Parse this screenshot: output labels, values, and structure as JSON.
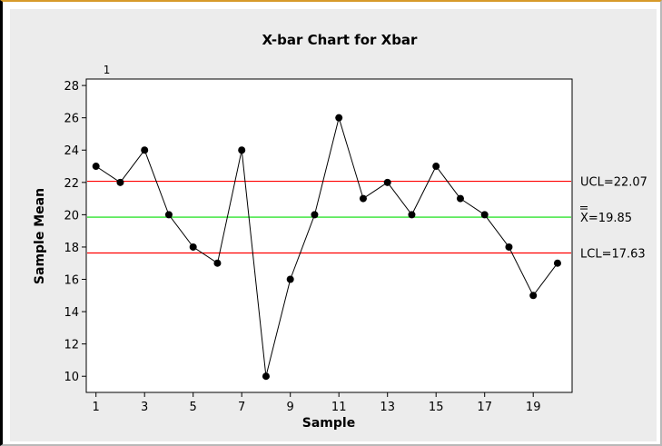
{
  "chart_data": {
    "type": "line",
    "title": "X-bar Chart for Xbar",
    "xlabel": "Sample",
    "ylabel": "Sample Mean",
    "x": [
      1,
      2,
      3,
      4,
      5,
      6,
      7,
      8,
      9,
      10,
      11,
      12,
      13,
      14,
      15,
      16,
      17,
      18,
      19,
      20
    ],
    "series": [
      {
        "values": [
          23,
          22,
          24,
          20,
          18,
          17,
          24,
          10,
          16,
          20,
          26,
          21,
          22,
          20,
          23,
          21,
          20,
          18,
          15,
          17
        ]
      }
    ],
    "xlim": [
      0.6,
      20.6
    ],
    "ylim": [
      9.0,
      28.4
    ],
    "xticks": [
      1,
      3,
      5,
      7,
      9,
      11,
      13,
      15,
      17,
      19
    ],
    "yticks": [
      10,
      12,
      14,
      16,
      18,
      20,
      22,
      24,
      26,
      28
    ],
    "reference_lines": [
      {
        "key": "ucl",
        "value": 22.07,
        "label": "UCL=22.07",
        "color": "#ff0000"
      },
      {
        "key": "center",
        "value": 19.85,
        "label_prefix": "X",
        "label_value": "=19.85",
        "color": "#00dd00"
      },
      {
        "key": "lcl",
        "value": 17.63,
        "label": "LCL=17.63",
        "color": "#ff0000"
      }
    ],
    "test_flags": [
      {
        "x": 1,
        "label": "1"
      }
    ],
    "grid": false,
    "colors": {
      "line": "#000000",
      "marker": "#000000",
      "background": "#ffffff",
      "frame": "#ececec"
    }
  }
}
